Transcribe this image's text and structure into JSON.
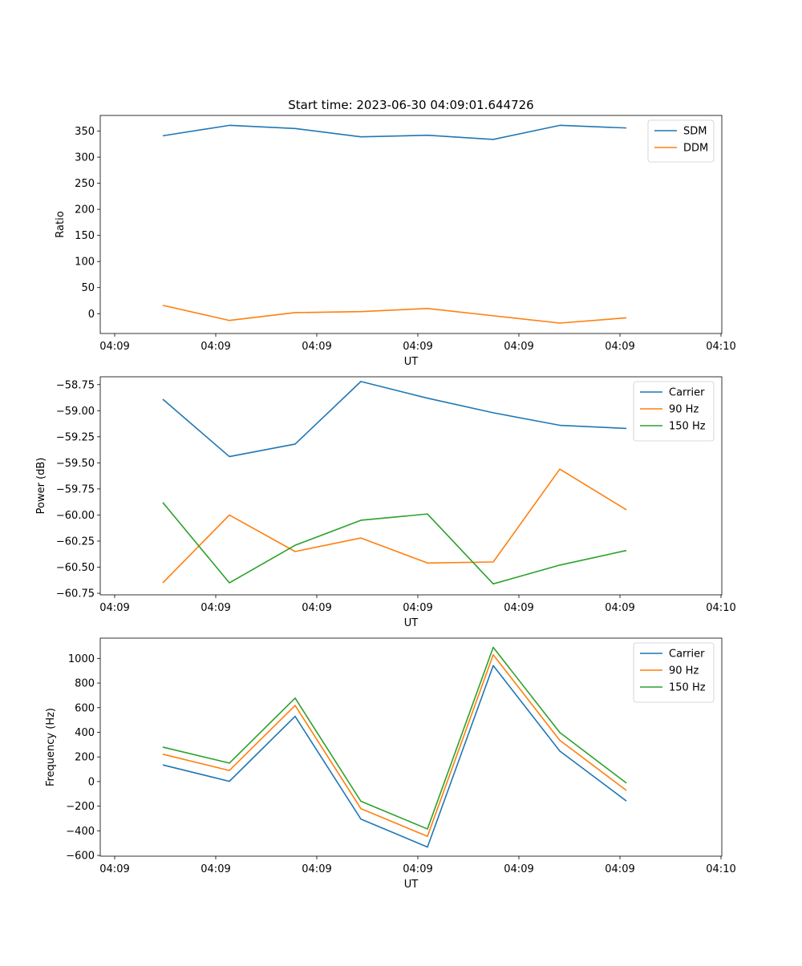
{
  "figure": {
    "title": "Start time: 2023-06-30 04:09:01.644726"
  },
  "chart_data": [
    {
      "type": "line",
      "title": "Start time: 2023-06-30 04:09:01.644726",
      "xlabel": "UT",
      "ylabel": "Ratio",
      "xtick_labels": [
        "04:09",
        "04:09",
        "04:09",
        "04:09",
        "04:09",
        "04:09",
        "04:10"
      ],
      "ylim": [
        -38,
        380
      ],
      "yticks": [
        0,
        50,
        100,
        150,
        200,
        250,
        300,
        350
      ],
      "ytick_labels": [
        "0",
        "50",
        "100",
        "150",
        "200",
        "250",
        "300",
        "350"
      ],
      "grid": false,
      "legend_position": "top-right",
      "series": [
        {
          "name": "SDM",
          "color": "#1f77b4",
          "values": [
            341,
            361,
            355,
            339,
            342,
            334,
            361,
            356
          ]
        },
        {
          "name": "DDM",
          "color": "#ff7f0e",
          "values": [
            16,
            -13,
            2,
            4,
            10,
            -4,
            -18,
            -8
          ]
        }
      ]
    },
    {
      "type": "line",
      "title": "",
      "xlabel": "UT",
      "ylabel": "Power (dB)",
      "xtick_labels": [
        "04:09",
        "04:09",
        "04:09",
        "04:09",
        "04:09",
        "04:09",
        "04:10"
      ],
      "ylim": [
        -60.765,
        -58.675
      ],
      "yticks": [
        -60.75,
        -60.5,
        -60.25,
        -60.0,
        -59.75,
        -59.5,
        -59.25,
        -59.0,
        -58.75
      ],
      "ytick_labels": [
        "−60.75",
        "−60.50",
        "−60.25",
        "−60.00",
        "−59.75",
        "−59.50",
        "−59.25",
        "−59.00",
        "−58.75"
      ],
      "grid": false,
      "legend_position": "top-right",
      "series": [
        {
          "name": "Carrier",
          "color": "#1f77b4",
          "values": [
            -58.89,
            -59.44,
            -59.32,
            -58.72,
            -58.88,
            -59.02,
            -59.14,
            -59.17
          ]
        },
        {
          "name": "90 Hz",
          "color": "#ff7f0e",
          "values": [
            -60.65,
            -60.0,
            -60.35,
            -60.22,
            -60.46,
            -60.45,
            -59.56,
            -59.95
          ]
        },
        {
          "name": "150 Hz",
          "color": "#2ca02c",
          "values": [
            -59.88,
            -60.65,
            -60.29,
            -60.05,
            -59.99,
            -60.66,
            -60.48,
            -60.34
          ]
        }
      ]
    },
    {
      "type": "line",
      "title": "",
      "xlabel": "UT",
      "ylabel": "Frequency (Hz)",
      "xtick_labels": [
        "04:09",
        "04:09",
        "04:09",
        "04:09",
        "04:09",
        "04:09",
        "04:10"
      ],
      "ylim": [
        -606,
        1165
      ],
      "yticks": [
        -600,
        -400,
        -200,
        0,
        200,
        400,
        600,
        800,
        1000
      ],
      "ytick_labels": [
        "−600",
        "−400",
        "−200",
        "0",
        "200",
        "400",
        "600",
        "800",
        "1000"
      ],
      "grid": false,
      "legend_position": "top-right",
      "series": [
        {
          "name": "Carrier",
          "color": "#1f77b4",
          "values": [
            135,
            2,
            530,
            -305,
            -532,
            942,
            248,
            -158
          ]
        },
        {
          "name": "90 Hz",
          "color": "#ff7f0e",
          "values": [
            222,
            90,
            618,
            -220,
            -445,
            1030,
            335,
            -72
          ]
        },
        {
          "name": "150 Hz",
          "color": "#2ca02c",
          "values": [
            280,
            150,
            678,
            -160,
            -385,
            1090,
            398,
            -12
          ]
        }
      ]
    }
  ]
}
